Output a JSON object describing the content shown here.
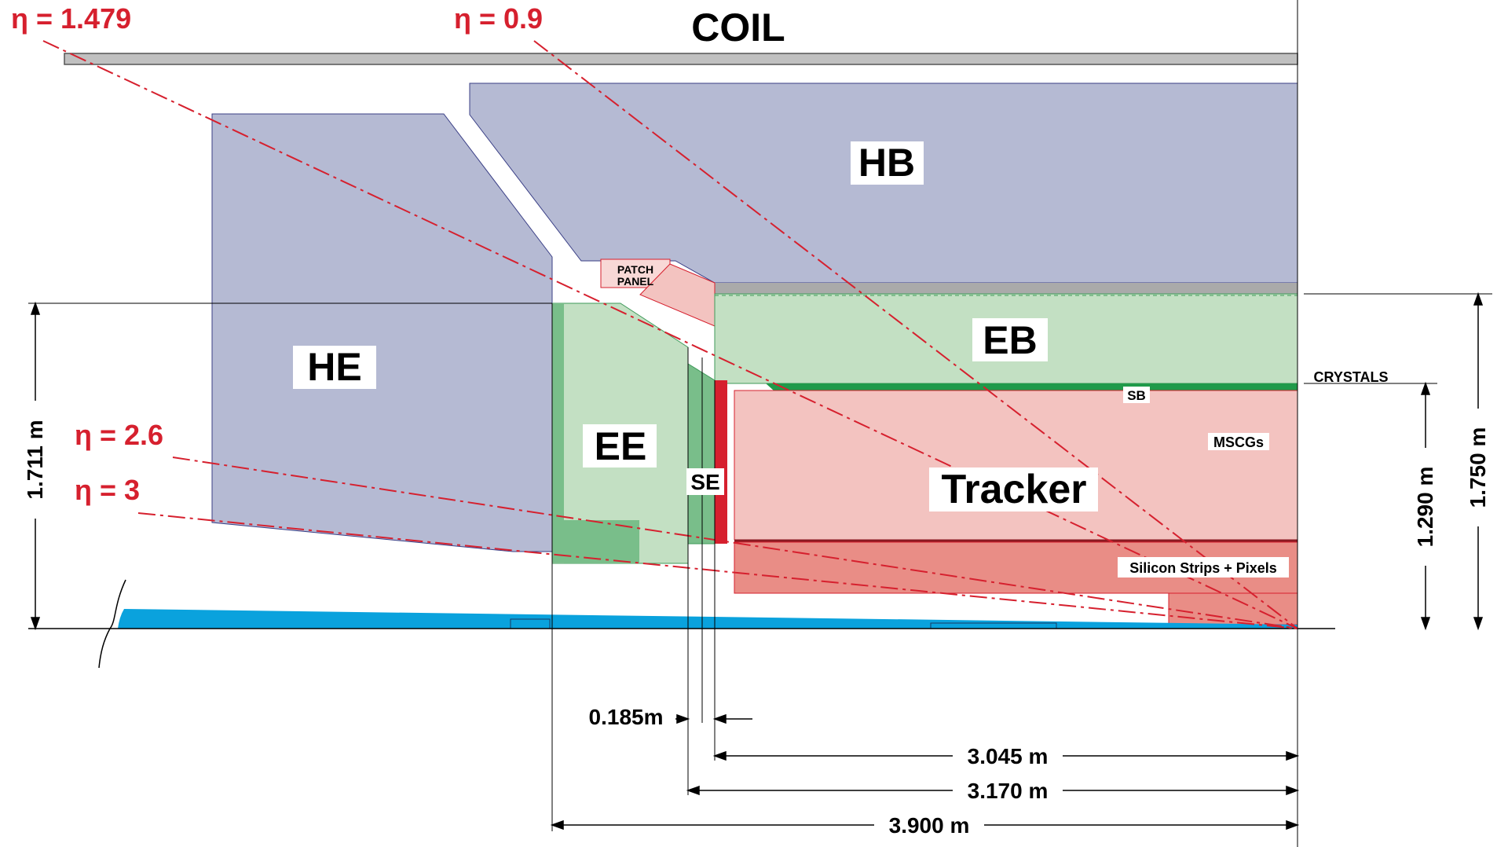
{
  "labels": {
    "coil": "COIL",
    "hb": "HB",
    "he": "HE",
    "eb": "EB",
    "ee": "EE",
    "se": "SE",
    "sb": "SB",
    "tracker": "Tracker",
    "patch_panel_line1": "PATCH",
    "patch_panel_line2": "PANEL",
    "crystals": "CRYSTALS",
    "mscgs": "MSCGs",
    "silicon": "Silicon Strips + Pixels"
  },
  "eta_lines": {
    "eta_1479": "η = 1.479",
    "eta_09": "η = 0.9",
    "eta_26": "η = 2.6",
    "eta_3": "η = 3"
  },
  "dimensions": {
    "d_1711": "1.711  m",
    "d_1750": "1.750  m",
    "d_1290": "1.290  m",
    "d_0185": "0.185m",
    "d_3045": "3.045  m",
    "d_3170": "3.170  m",
    "d_3900": "3.900  m"
  },
  "colors": {
    "hcal": "#b5bad3",
    "ecal_light": "#c3e0c3",
    "ecal_dark": "#79be8a",
    "ecal_bright": "#1f9a4a",
    "tracker_light": "#f3c3c0",
    "tracker_dark": "#e98d86",
    "red_accent": "#d6202e",
    "beampipe": "#0aa2dd",
    "coil": "#c0c0c0"
  }
}
